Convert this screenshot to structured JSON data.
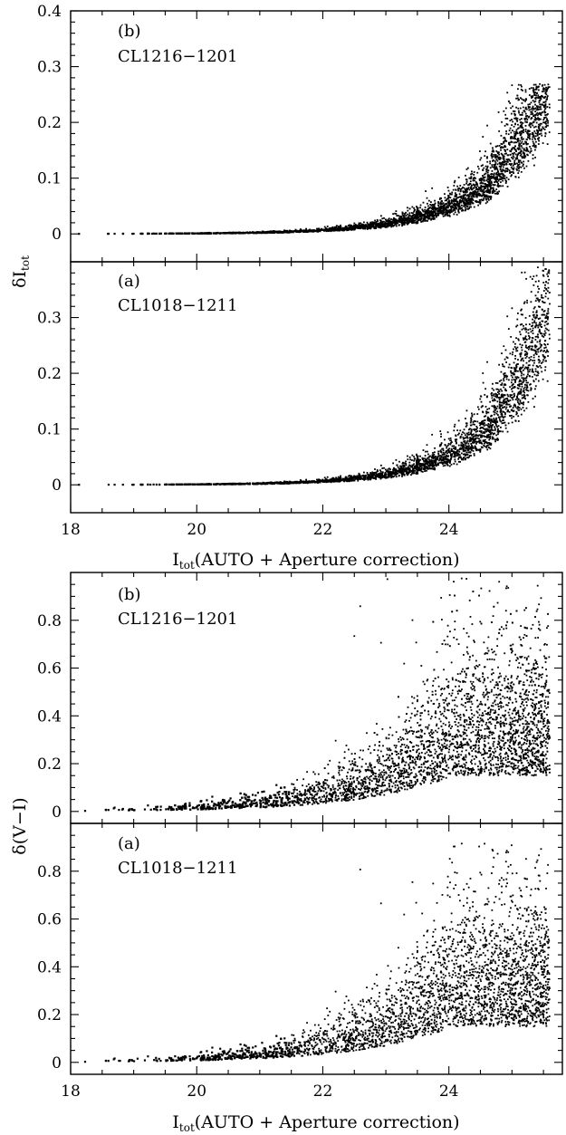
{
  "chart_data": [
    {
      "type": "scatter",
      "figure": "top",
      "ylabel": "δI",
      "ylabel_sub": "tot",
      "xlabel": "I",
      "xlabel_sub": "tot",
      "xlabel_rest": "(AUTO + Aperture correction)",
      "xlim": [
        18,
        25.8
      ],
      "xticks": [
        "18",
        "20",
        "22",
        "24"
      ],
      "ylim": [
        -0.05,
        0.4
      ],
      "grid": false,
      "panels": [
        {
          "label": "(b)",
          "cluster": "CL1216−1201",
          "yticks": [
            "0",
            "0.1",
            "0.2",
            "0.3",
            "0.4"
          ],
          "curve": {
            "a": 0.012,
            "b": 1.0,
            "c": 0.0,
            "min": -0.004,
            "width": 0.0,
            "spread": 0.35,
            "ceil": 0.27
          },
          "series": [
            {
              "values": "dense photometric scatter: delta rises from ~0 at I=18 to ~0.1-0.2 at I=25.5"
            }
          ]
        },
        {
          "label": "(a)",
          "cluster": "CL1018−1211",
          "yticks": [
            "0",
            "0.1",
            "0.2",
            "0.3"
          ],
          "curve": {
            "a": 0.012,
            "b": 1.05,
            "c": 0.0,
            "min": -0.004,
            "width": 0.0,
            "spread": 0.4,
            "ceil": 0.39
          },
          "series": [
            {
              "values": "dense photometric scatter: delta rises from ~0 at I=18 to ~0.1-0.23 at I=25.5"
            }
          ]
        }
      ]
    },
    {
      "type": "scatter",
      "figure": "bottom",
      "ylabel": "δ(V−I)",
      "xlabel": "I",
      "xlabel_sub": "tot",
      "xlabel_rest": "(AUTO + Aperture correction)",
      "xlim": [
        18,
        25.8
      ],
      "xticks": [
        "18",
        "20",
        "22",
        "24"
      ],
      "ylim": [
        -0.05,
        1.0
      ],
      "grid": false,
      "panels": [
        {
          "label": "(b)",
          "cluster": "CL1216−1201",
          "yticks": [
            "0",
            "0.2",
            "0.4",
            "0.6",
            "0.8"
          ],
          "curve": {
            "a": 0.02,
            "b": 1.0,
            "spread": 0.7,
            "ceil": 0.98
          },
          "series": [
            {
              "values": "dense scatter: delta(V-I) rises from ~0 at I=18 to ~0.2-0.4 at I=25.5 with outliers to 1"
            }
          ]
        },
        {
          "label": "(a)",
          "cluster": "CL1018−1211",
          "yticks": [
            "0",
            "0.2",
            "0.4",
            "0.6",
            "0.8"
          ],
          "curve": {
            "a": 0.02,
            "b": 1.0,
            "spread": 0.7,
            "ceil": 0.92
          },
          "series": [
            {
              "values": "dense scatter: delta(V-I) rises from ~0 at I=18 to ~0.2-0.4 at I=25.5 with outliers to 0.9"
            }
          ]
        }
      ]
    }
  ]
}
